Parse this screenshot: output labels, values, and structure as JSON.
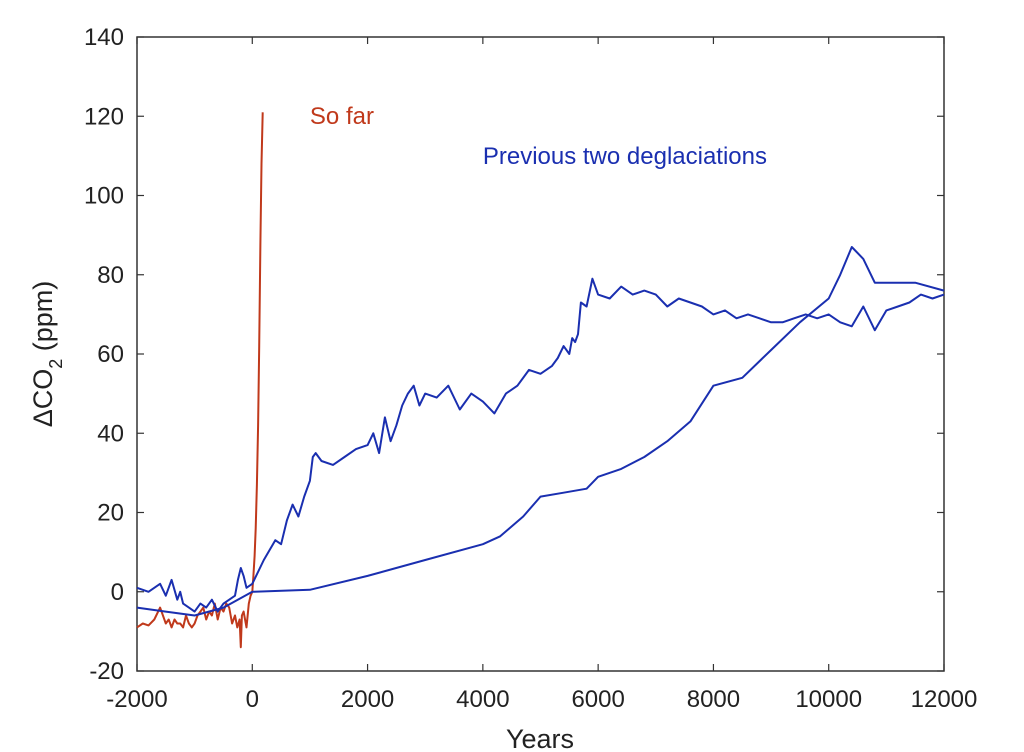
{
  "chart_data": {
    "type": "line",
    "title": "",
    "xlabel": "Years",
    "ylabel_main": "ΔCO",
    "ylabel_sub": "2",
    "ylabel_unit": " (ppm)",
    "xlim": [
      -2000,
      12000
    ],
    "ylim": [
      -20,
      140
    ],
    "xticks": [
      -2000,
      0,
      2000,
      4000,
      6000,
      8000,
      10000,
      12000
    ],
    "yticks": [
      -20,
      0,
      20,
      40,
      60,
      80,
      100,
      120,
      140
    ],
    "grid": false,
    "legend": "none",
    "annotations": [
      {
        "text": "So far",
        "color": "#c0391b",
        "x": 1000,
        "y": 118
      },
      {
        "text": "Previous two deglaciations",
        "color": "#1a2fb0",
        "x": 4000,
        "y": 108
      }
    ],
    "series": [
      {
        "color": "#c0391b",
        "x": [
          -2000,
          -1900,
          -1800,
          -1700,
          -1600,
          -1500,
          -1450,
          -1400,
          -1350,
          -1300,
          -1250,
          -1200,
          -1150,
          -1100,
          -1050,
          -1000,
          -950,
          -900,
          -850,
          -800,
          -750,
          -700,
          -650,
          -600,
          -550,
          -500,
          -450,
          -400,
          -350,
          -300,
          -260,
          -220,
          -200,
          -180,
          -150,
          -100,
          -60,
          -30,
          0,
          20,
          40,
          60,
          80,
          100,
          120,
          140,
          160,
          180
        ],
        "y": [
          -9,
          -8,
          -8.5,
          -7,
          -4,
          -8,
          -7,
          -9,
          -7,
          -8,
          -8,
          -9,
          -6,
          -8,
          -9,
          -8,
          -6,
          -5,
          -4,
          -7,
          -5,
          -6,
          -3,
          -7,
          -4,
          -5,
          -3,
          -4,
          -8,
          -6,
          -9,
          -7,
          -14,
          -6,
          -5,
          -9,
          -3,
          -1,
          0,
          4,
          9,
          16,
          27,
          42,
          62,
          88,
          108,
          121
        ]
      },
      {
        "color": "#1a2fb0",
        "x": [
          -2000,
          -1800,
          -1600,
          -1500,
          -1400,
          -1300,
          -1250,
          -1200,
          -1100,
          -1000,
          -900,
          -800,
          -700,
          -600,
          -500,
          -400,
          -300,
          -250,
          -200,
          -150,
          -100,
          0,
          200,
          400,
          500,
          600,
          700,
          800,
          900,
          1000,
          1050,
          1100,
          1200,
          1400,
          1600,
          1800,
          2000,
          2100,
          2200,
          2300,
          2400,
          2500,
          2600,
          2700,
          2800,
          2900,
          3000,
          3200,
          3400,
          3600,
          3800,
          4000,
          4200,
          4400,
          4600,
          4800,
          5000,
          5200,
          5300,
          5400,
          5500,
          5550,
          5600,
          5650,
          5700,
          5800,
          5900,
          6000,
          6200,
          6400,
          6600,
          6800,
          7000,
          7200,
          7400,
          7600,
          7800,
          8000,
          8200,
          8400,
          8600,
          8800,
          9000,
          9200,
          9400,
          9600,
          9800,
          10000,
          10200,
          10400,
          10600,
          10800,
          11000,
          11200,
          11400,
          11600,
          11800,
          12000
        ],
        "y": [
          1,
          0,
          2,
          -1,
          3,
          -2,
          0,
          -3,
          -4,
          -5,
          -3,
          -4,
          -2,
          -5,
          -3,
          -2,
          -1,
          3,
          6,
          4,
          1,
          2,
          8,
          13,
          12,
          18,
          22,
          19,
          24,
          28,
          34,
          35,
          33,
          32,
          34,
          36,
          37,
          40,
          35,
          44,
          38,
          42,
          47,
          50,
          52,
          47,
          50,
          49,
          52,
          46,
          50,
          48,
          45,
          50,
          52,
          56,
          55,
          57,
          59,
          62,
          60,
          64,
          63,
          65,
          73,
          72,
          79,
          75,
          74,
          77,
          75,
          76,
          75,
          72,
          74,
          73,
          72,
          70,
          71,
          69,
          70,
          69,
          68,
          68,
          69,
          70,
          69,
          70,
          68,
          67,
          72,
          66,
          71,
          72,
          73,
          75,
          74,
          75
        ],
        "note": ""
      },
      {
        "color": "#1a2fb0",
        "x": [
          -2000,
          -1500,
          -1000,
          -500,
          0,
          1000,
          2000,
          3000,
          4000,
          4300,
          4700,
          5000,
          5400,
          5800,
          6000,
          6400,
          6800,
          7200,
          7600,
          8000,
          8500,
          9000,
          9500,
          10000,
          10200,
          10400,
          10600,
          10800,
          11000,
          11500,
          12000
        ],
        "y": [
          -4,
          -5,
          -6,
          -4,
          0,
          0.5,
          4,
          8,
          12,
          14,
          19,
          24,
          25,
          26,
          29,
          31,
          34,
          38,
          43,
          52,
          54,
          61,
          68,
          74,
          80,
          87,
          84,
          78,
          78,
          78,
          76
        ]
      }
    ]
  }
}
